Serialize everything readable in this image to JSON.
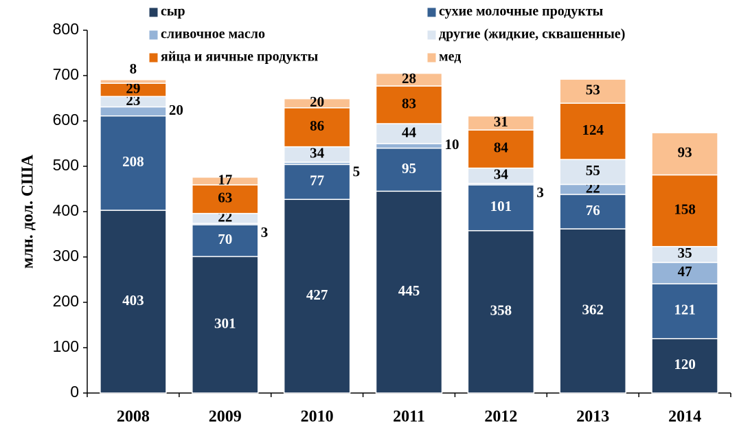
{
  "chart_data": {
    "type": "stacked_bar",
    "y_axis_label": "млн. дол. США",
    "categories": [
      "2008",
      "2009",
      "2010",
      "2011",
      "2012",
      "2013",
      "2014"
    ],
    "series": [
      {
        "name": "сыр",
        "color": "#243f60",
        "values": [
          403,
          301,
          427,
          445,
          358,
          362,
          120
        ]
      },
      {
        "name": "сухие молочные продукты",
        "color": "#366092",
        "values": [
          208,
          70,
          77,
          95,
          101,
          76,
          121
        ]
      },
      {
        "name": "сливочное масло",
        "color": "#95b3d7",
        "values": [
          20,
          3,
          5,
          10,
          3,
          22,
          47
        ]
      },
      {
        "name": "другие (жидкие, сквашенные)",
        "color": "#dce6f1",
        "values": [
          23,
          22,
          34,
          44,
          34,
          55,
          35
        ]
      },
      {
        "name": "яйца и яичные продукты",
        "color": "#e46c0a",
        "values": [
          29,
          63,
          86,
          83,
          84,
          124,
          158
        ]
      },
      {
        "name": "мед",
        "color": "#fac090",
        "values": [
          8,
          17,
          20,
          28,
          31,
          53,
          93
        ]
      }
    ],
    "ylim": [
      0,
      800
    ],
    "yticks": [
      0,
      100,
      200,
      300,
      400,
      500,
      600,
      700,
      800
    ]
  }
}
